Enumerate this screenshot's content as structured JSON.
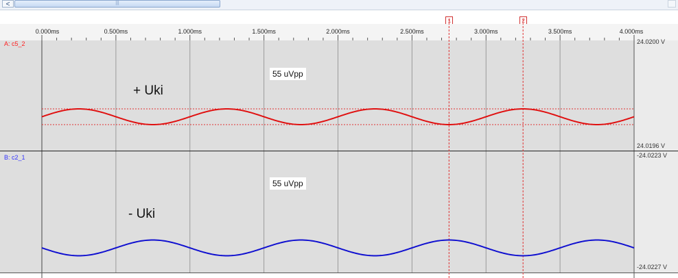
{
  "scrollbar": {
    "left_arrow": "<",
    "grip": "|||"
  },
  "cursors": [
    {
      "label": "1",
      "t": 2.75
    },
    {
      "label": "2",
      "t": 3.25
    }
  ],
  "time_axis": {
    "ticks": [
      "0.000ms",
      "0.500ms",
      "1.000ms",
      "1.500ms",
      "2.000ms",
      "2.500ms",
      "3.000ms",
      "3.500ms",
      "4.000ms"
    ]
  },
  "channels": [
    {
      "name": "A: c5_2",
      "color": "#ff2020",
      "trace_color": "#e01010",
      "v_top": "24.0200 V",
      "v_bottom": "24.0196 V",
      "amplitude": "55 uVpp",
      "signal_label": "+ Uki"
    },
    {
      "name": "B: c2_1",
      "color": "#3333ff",
      "trace_color": "#1010d0",
      "v_top": "-24.0223 V",
      "v_bottom": "-24.0227 V",
      "amplitude": "55 uVpp",
      "signal_label": "- Uki"
    }
  ],
  "chart_data": {
    "type": "line",
    "x_unit": "ms",
    "xlim": [
      0,
      4.0
    ],
    "series": [
      {
        "name": "A: c5_2",
        "waveform": "sine",
        "period_ms": 1.0,
        "peak_at_ms": [
          0.25,
          1.25,
          2.25,
          3.25
        ],
        "amplitude": "55 uVpp",
        "ylim": [
          "24.0196 V",
          "24.0200 V"
        ]
      },
      {
        "name": "B: c2_1",
        "waveform": "sine",
        "period_ms": 1.0,
        "peak_at_ms": [
          0.75,
          1.75,
          2.75,
          3.75
        ],
        "amplitude": "55 uVpp",
        "ylim": [
          "-24.0227 V",
          "-24.0223 V"
        ]
      }
    ]
  }
}
